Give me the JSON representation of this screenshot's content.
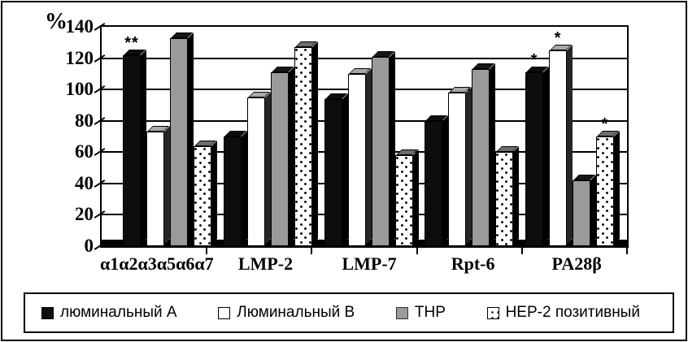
{
  "chart_data": {
    "type": "bar",
    "title": "",
    "ylabel": "%",
    "xlabel": "",
    "ylim": [
      0,
      140
    ],
    "yticks": [
      0,
      20,
      40,
      60,
      80,
      100,
      120,
      140
    ],
    "grid": true,
    "legend_position": "bottom",
    "bar_style": "3d",
    "categories": [
      "α1α2α3α5α6α7",
      "LMP-2",
      "LMP-7",
      "Rpt-6",
      "PA28β"
    ],
    "series": [
      {
        "name": "люминальный А",
        "style": "black",
        "color": "#0d0d0d",
        "values": [
          122,
          70,
          94,
          80,
          111
        ]
      },
      {
        "name": "Люминальный В",
        "style": "white",
        "color": "#ffffff",
        "values": [
          73,
          95,
          110,
          98,
          125
        ]
      },
      {
        "name": "THP",
        "style": "gray",
        "color": "#9a9a9a",
        "values": [
          133,
          111,
          121,
          113,
          42
        ]
      },
      {
        "name": "HEP-2 позитивный",
        "style": "dotted-white",
        "color": "#ffffff",
        "values": [
          64,
          127,
          58,
          60,
          70
        ]
      }
    ],
    "annotations": [
      {
        "category_index": 0,
        "series_index": 0,
        "text": "**"
      },
      {
        "category_index": 4,
        "series_index": 0,
        "text": "*"
      },
      {
        "category_index": 4,
        "series_index": 1,
        "text": "*"
      },
      {
        "category_index": 4,
        "series_index": 3,
        "text": "*"
      }
    ]
  }
}
